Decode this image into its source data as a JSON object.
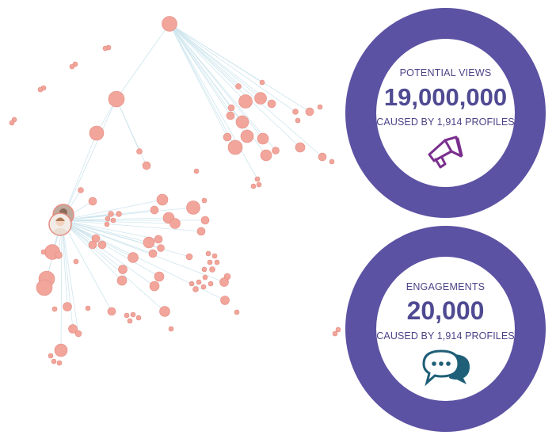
{
  "colors": {
    "ring": "#5b52a3",
    "node_fill": "#f2a59b",
    "node_stroke": "#e38b80",
    "edge": "#cfe6ee",
    "label_text": "#4c4488",
    "value_text": "#4f4a92",
    "megaphone": "#7a2f8e",
    "chat_icon": "#1f5f78"
  },
  "cards": [
    {
      "label": "POTENTIAL VIEWS",
      "value": "19,000,000",
      "sub": "CAUSED BY 1,914 PROFILES",
      "icon": "megaphone-icon"
    },
    {
      "label": "ENGAGEMENTS",
      "value": "20,000",
      "sub": "CAUSED BY 1,914 PROFILES",
      "icon": "chat-bubbles-icon"
    }
  ]
}
